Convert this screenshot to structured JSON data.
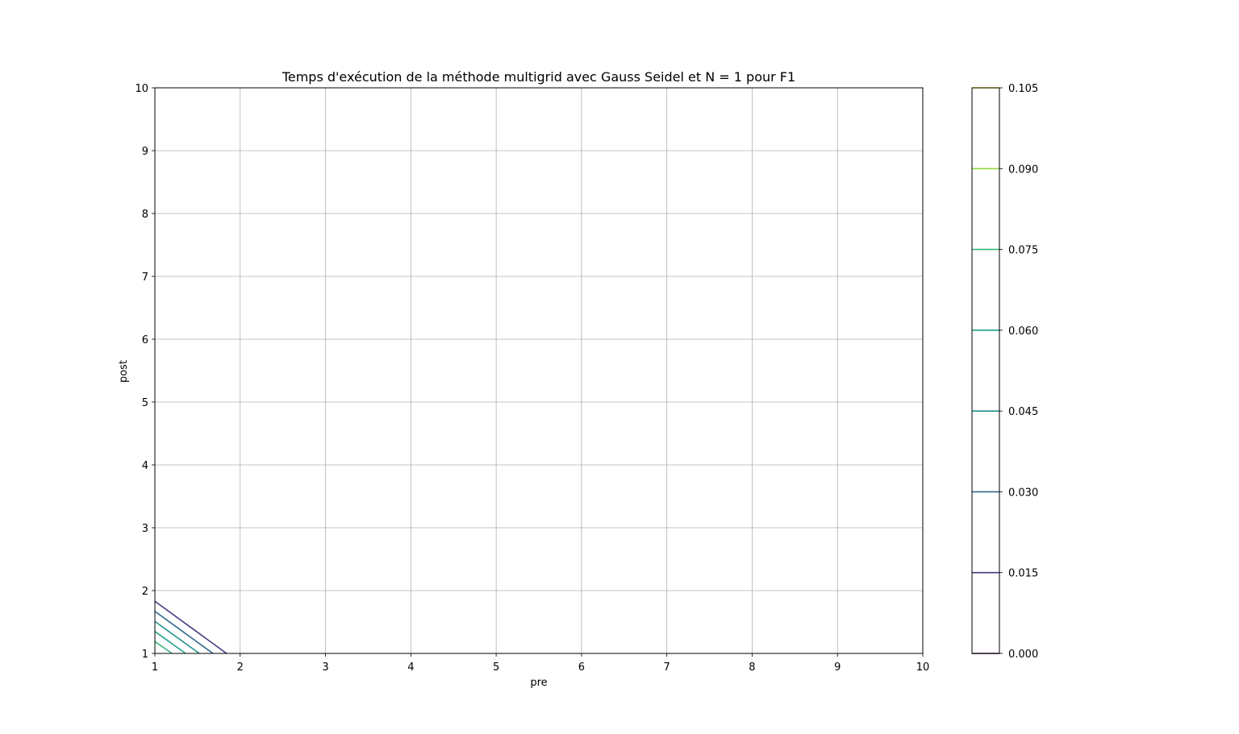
{
  "chart_data": {
    "type": "contour",
    "title": "Temps d'exécution de la méthode multigrid avec Gauss Seidel et N = 1 pour F1",
    "xlabel": "pre",
    "ylabel": "post",
    "xlim": [
      1,
      10
    ],
    "ylim": [
      1,
      10
    ],
    "x_ticks": [
      "1",
      "2",
      "3",
      "4",
      "5",
      "6",
      "7",
      "8",
      "9",
      "10"
    ],
    "y_ticks": [
      "1",
      "2",
      "3",
      "4",
      "5",
      "6",
      "7",
      "8",
      "9",
      "10"
    ],
    "grid": true,
    "colorbar": {
      "ticks": [
        "0.000",
        "0.015",
        "0.030",
        "0.045",
        "0.060",
        "0.075",
        "0.090",
        "0.105"
      ],
      "range": [
        0.0,
        0.105
      ]
    },
    "levels": [
      {
        "level": 0.0,
        "color": "#440154",
        "points": []
      },
      {
        "level": 0.015,
        "color": "#443983",
        "points": [
          [
            1,
            1.83
          ],
          [
            1.84,
            1
          ]
        ]
      },
      {
        "level": 0.03,
        "color": "#31688e",
        "points": [
          [
            1,
            1.67
          ],
          [
            1.68,
            1
          ]
        ]
      },
      {
        "level": 0.045,
        "color": "#21918c",
        "points": [
          [
            1,
            1.51
          ],
          [
            1.52,
            1
          ]
        ]
      },
      {
        "level": 0.06,
        "color": "#1fa187",
        "points": [
          [
            1,
            1.35
          ],
          [
            1.36,
            1
          ]
        ]
      },
      {
        "level": 0.075,
        "color": "#35b779",
        "points": [
          [
            1,
            1.19
          ],
          [
            1.2,
            1
          ]
        ]
      },
      {
        "level": 0.09,
        "color": "#90d743",
        "points": []
      },
      {
        "level": 0.105,
        "color": "#fde725",
        "points": []
      }
    ]
  }
}
